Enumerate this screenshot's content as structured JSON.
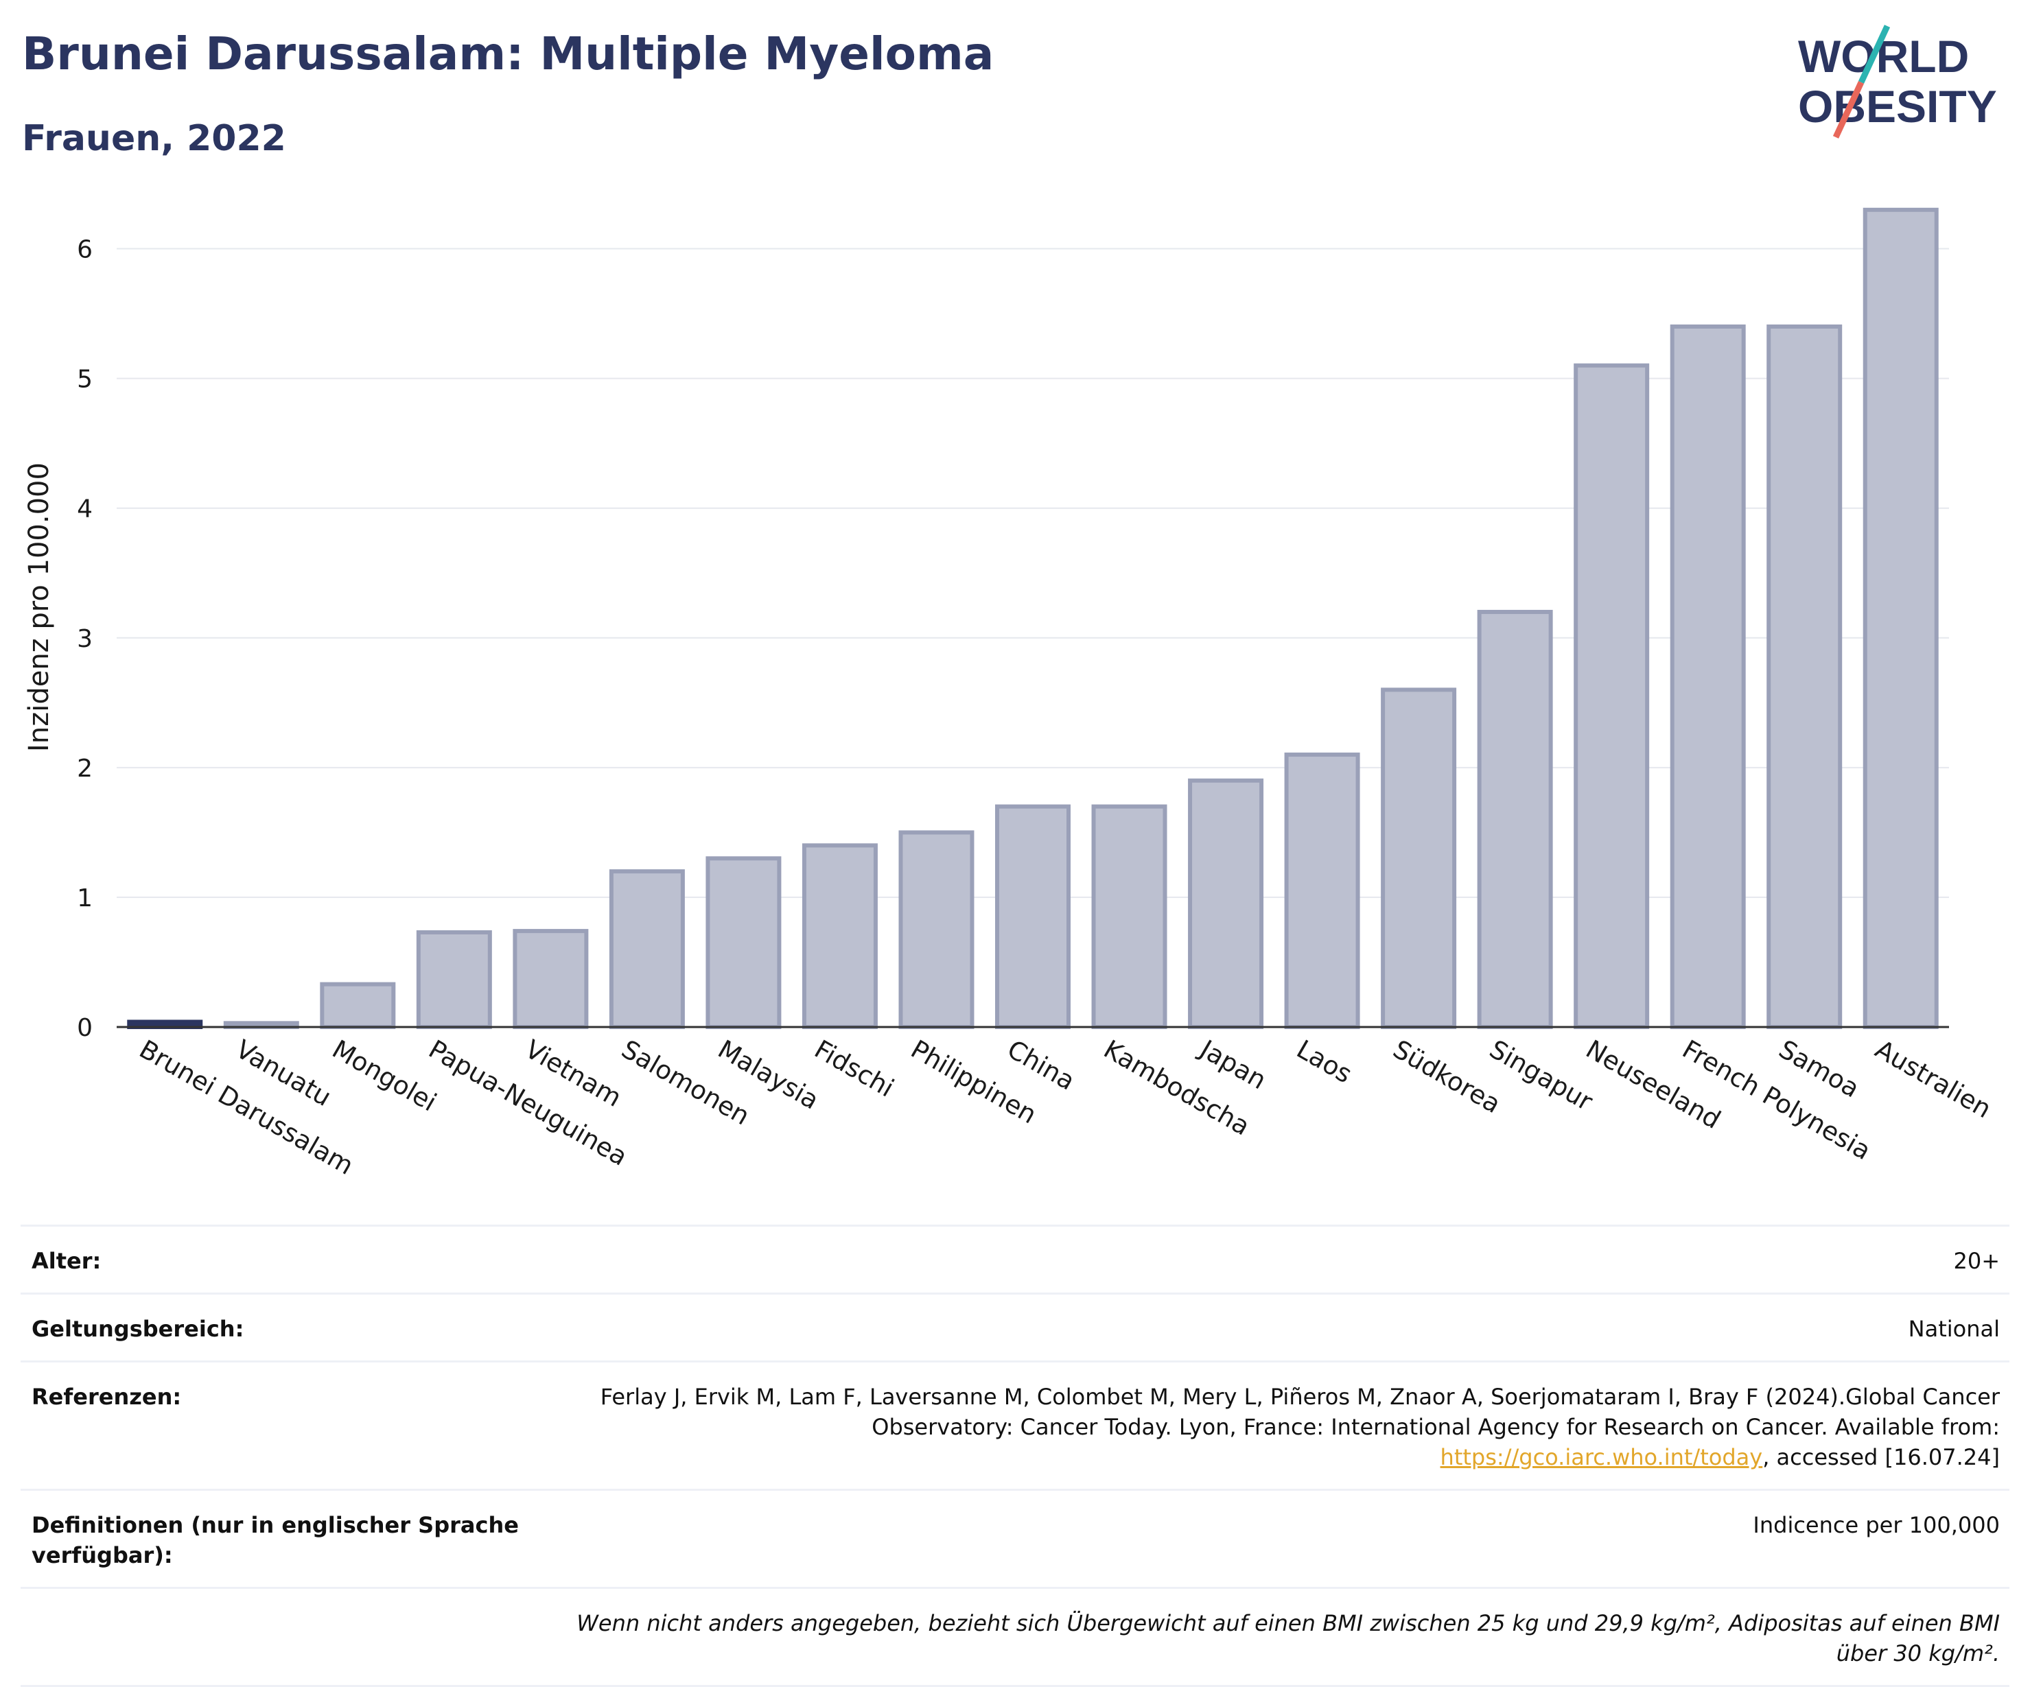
{
  "header": {
    "title": "Brunei Darussalam: Multiple Myeloma",
    "subtitle": "Frauen, 2022",
    "logo_text_line1": "WORLD",
    "logo_text_line2": "OBESITY"
  },
  "colors": {
    "title": "#2b3560",
    "bar_fill": "#bcc0d0",
    "bar_stroke": "#9aa0b8",
    "highlight_bar": "#2b3560",
    "grid": "#e6e8ee",
    "link": "#e2a62a",
    "logo_teal": "#2bb3b1",
    "logo_coral": "#e8675a"
  },
  "chart_data": {
    "type": "bar",
    "ylabel": "Inzidenz pro 100.000",
    "ylim": [
      0,
      6.5
    ],
    "yticks": [
      0,
      1,
      2,
      3,
      4,
      5,
      6
    ],
    "grid": true,
    "highlight": "Brunei Darussalam",
    "categories": [
      "Brunei Darussalam",
      "Vanuatu",
      "Mongolei",
      "Papua-Neuguinea",
      "Vietnam",
      "Salomonen",
      "Malaysia",
      "Fidschi",
      "Philippinen",
      "China",
      "Kambodscha",
      "Japan",
      "Laos",
      "Südkorea",
      "Singapur",
      "Neuseeland",
      "French Polynesia",
      "Samoa",
      "Australien"
    ],
    "values": [
      0.04,
      0.03,
      0.33,
      0.73,
      0.74,
      1.2,
      1.3,
      1.4,
      1.5,
      1.7,
      1.7,
      1.9,
      2.1,
      2.6,
      3.2,
      5.1,
      5.4,
      5.4,
      6.3
    ]
  },
  "info": {
    "age_label": "Alter:",
    "age_value": "20+",
    "scope_label": "Geltungsbereich:",
    "scope_value": "National",
    "refs_label": "Referenzen:",
    "refs_text_before": "Ferlay J, Ervik M, Lam F, Laversanne M, Colombet M, Mery L, Piñeros M, Znaor A, Soerjomataram I, Bray F (2024).Global Cancer Observatory: Cancer Today. Lyon, France: International Agency for Research on Cancer. Available from: ",
    "refs_link": "https://gco.iarc.who.int/today",
    "refs_text_after": ", accessed [16.07.24]",
    "defs_label": "Definitionen (nur in englischer Sprache verfügbar):",
    "defs_value": "Indicence per 100,000",
    "note": "Wenn nicht anders angegeben, bezieht sich Übergewicht auf einen BMI zwischen 25 kg und 29,9 kg/m², Adipositas auf einen BMI über 30 kg/m²."
  }
}
